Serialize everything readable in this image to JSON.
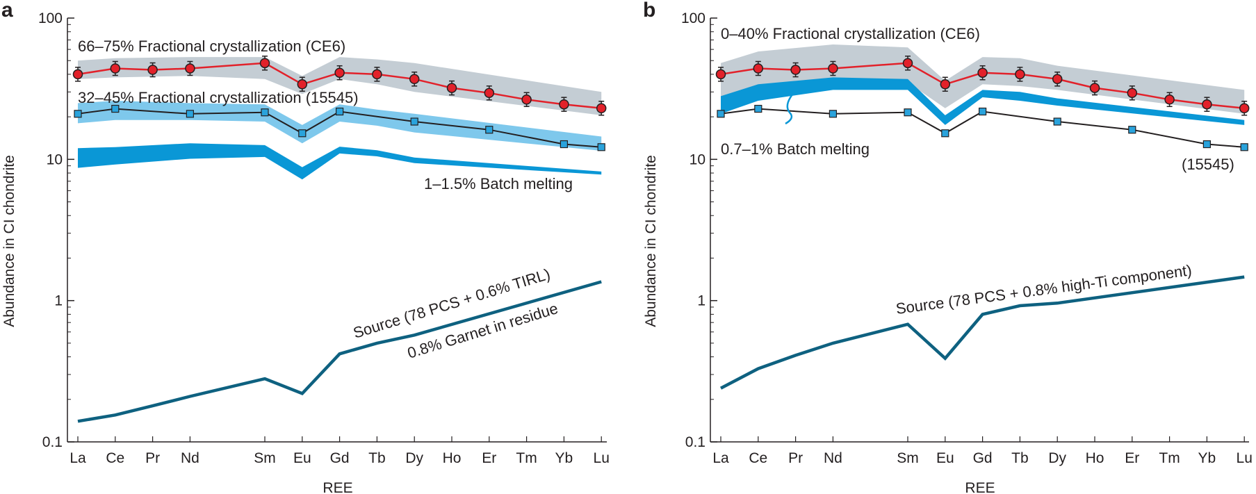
{
  "figure": {
    "panel_a_letter": "a",
    "panel_b_letter": "b"
  },
  "colors": {
    "red": "#e2212a",
    "black_line": "#231f20",
    "gray_band": "#c4cdd4",
    "light_blue_band": "#7ec8ec",
    "blue_band": "#0a97d6",
    "source_line": "#0e6180",
    "square_fill": "#2aa3dc"
  },
  "chart_data": [
    {
      "panel": "a",
      "type": "line",
      "scale": "log",
      "ylabel": "Abundance in CI chondrite",
      "xlabel": "REE",
      "categories": [
        "La",
        "Ce",
        "Pr",
        "Nd",
        "Sm",
        "Eu",
        "Gd",
        "Tb",
        "Dy",
        "Ho",
        "Er",
        "Tm",
        "Yb",
        "Lu"
      ],
      "category_positions": [
        0,
        1,
        2,
        3,
        5,
        6,
        7,
        8,
        9,
        10,
        11,
        12,
        13,
        14
      ],
      "ylim": [
        0.1,
        100
      ],
      "yticks": [
        0.1,
        1,
        10,
        100
      ],
      "ytick_labels": [
        "0.1",
        "1",
        "10",
        "100"
      ],
      "bands": [
        {
          "name": "gray",
          "label": "66–75% Fractional crystallization (CE6)",
          "color": "#c4cdd4",
          "x": [
            0,
            1,
            3,
            5,
            6,
            7,
            8,
            9,
            14
          ],
          "lower": [
            37,
            38,
            39,
            37,
            29,
            37,
            34,
            30,
            20.5
          ],
          "upper": [
            50,
            52,
            53,
            53,
            39,
            53,
            51,
            48,
            30
          ]
        },
        {
          "name": "light-blue",
          "label": "32–45% Fractional crystallization (15545)",
          "color": "#7ec8ec",
          "x": [
            0,
            1,
            3,
            5,
            6,
            7,
            8,
            9,
            14
          ],
          "lower": [
            18,
            19,
            19,
            18.5,
            13,
            18.5,
            17.3,
            15.5,
            11.5
          ],
          "upper": [
            25,
            26,
            25,
            24.5,
            17.5,
            24.5,
            22.5,
            21,
            14.5
          ]
        },
        {
          "name": "blue",
          "label": "1–1.5% Batch melting",
          "color": "#0a97d6",
          "x": [
            0,
            1,
            3,
            5,
            6,
            7,
            8,
            9,
            14
          ],
          "lower": [
            8.7,
            9.2,
            10.1,
            10.4,
            7.2,
            11.0,
            10.5,
            9.4,
            7.8
          ],
          "upper": [
            12.0,
            12.2,
            13.0,
            12.6,
            8.8,
            12.3,
            11.6,
            10.3,
            8.2
          ]
        }
      ],
      "series": [
        {
          "name": "CE6",
          "color": "#e2212a",
          "marker": "circle",
          "error_bars": true,
          "x": [
            0,
            1,
            2,
            3,
            5,
            6,
            7,
            8,
            9,
            10,
            11,
            12,
            13,
            14
          ],
          "values": [
            40,
            44,
            43,
            44,
            48,
            34,
            41,
            40,
            37,
            32,
            29.5,
            26.5,
            24.5,
            23
          ]
        },
        {
          "name": "15545",
          "color": "#231f20",
          "marker": "square",
          "x": [
            0,
            1,
            3,
            5,
            6,
            7,
            9,
            11,
            13,
            14
          ],
          "values": [
            21,
            22.8,
            21,
            21.5,
            15.3,
            21.8,
            18.5,
            16.2,
            12.8,
            12.2
          ]
        },
        {
          "name": "Source",
          "color": "#0e6180",
          "marker": "none",
          "x": [
            0,
            1,
            2,
            3,
            5,
            6,
            7,
            8,
            9,
            14
          ],
          "values": [
            0.14,
            0.155,
            0.18,
            0.21,
            0.28,
            0.22,
            0.42,
            0.5,
            0.57,
            1.36
          ]
        }
      ],
      "annotations": [
        "66–75% Fractional crystallization (CE6)",
        "32–45% Fractional crystallization (15545)",
        "1–1.5% Batch melting",
        "Source (78 PCS + 0.6% TIRL)",
        "0.8% Garnet in residue"
      ]
    },
    {
      "panel": "b",
      "type": "line",
      "scale": "log",
      "ylabel": "Abundance in CI chondrite",
      "xlabel": "REE",
      "categories": [
        "La",
        "Ce",
        "Pr",
        "Nd",
        "Sm",
        "Eu",
        "Gd",
        "Tb",
        "Dy",
        "Ho",
        "Er",
        "Tm",
        "Yb",
        "Lu"
      ],
      "category_positions": [
        0,
        1,
        2,
        3,
        5,
        6,
        7,
        8,
        9,
        10,
        11,
        12,
        13,
        14
      ],
      "ylim": [
        0.1,
        100
      ],
      "yticks": [
        0.1,
        1,
        10,
        100
      ],
      "ytick_labels": [
        "0.1",
        "1",
        "10",
        "100"
      ],
      "bands": [
        {
          "name": "gray",
          "label": "0–40% Fractional crystallization (CE6)",
          "color": "#c4cdd4",
          "x": [
            0,
            1,
            3,
            5,
            6,
            7,
            8,
            9,
            14
          ],
          "lower": [
            27,
            33,
            36,
            35,
            23,
            34,
            33,
            31,
            21
          ],
          "upper": [
            48,
            58,
            65,
            62,
            36,
            53,
            52,
            46,
            31
          ]
        },
        {
          "name": "blue",
          "label": "0.7–1% Batch melting",
          "color": "#0a97d6",
          "x": [
            0,
            1,
            3,
            5,
            6,
            7,
            8,
            9,
            14
          ],
          "lower": [
            21,
            26,
            31,
            31,
            17.5,
            27.5,
            26,
            24,
            17.5
          ],
          "upper": [
            28,
            34,
            38,
            37,
            20.5,
            31,
            30,
            27,
            19
          ]
        }
      ],
      "series": [
        {
          "name": "CE6",
          "color": "#e2212a",
          "marker": "circle",
          "error_bars": true,
          "x": [
            0,
            1,
            2,
            3,
            5,
            6,
            7,
            8,
            9,
            10,
            11,
            12,
            13,
            14
          ],
          "values": [
            40,
            44,
            43,
            44,
            48,
            34,
            41,
            40,
            37,
            32,
            29.5,
            26.5,
            24.5,
            23
          ]
        },
        {
          "name": "15545",
          "color": "#231f20",
          "marker": "square",
          "x": [
            0,
            1,
            3,
            5,
            6,
            7,
            9,
            11,
            13,
            14
          ],
          "values": [
            21,
            22.8,
            21,
            21.5,
            15.3,
            21.8,
            18.5,
            16.2,
            12.8,
            12.2
          ]
        },
        {
          "name": "Source",
          "color": "#0e6180",
          "marker": "none",
          "x": [
            0,
            1,
            2,
            3,
            5,
            6,
            7,
            8,
            9,
            14
          ],
          "values": [
            0.24,
            0.33,
            0.41,
            0.5,
            0.68,
            0.39,
            0.8,
            0.92,
            0.96,
            1.47
          ]
        }
      ],
      "annotations": [
        "0–40% Fractional crystallization (CE6)",
        "0.7–1% Batch melting",
        "(15545)",
        "Source (78 PCS + 0.8% high-Ti component)"
      ]
    }
  ]
}
